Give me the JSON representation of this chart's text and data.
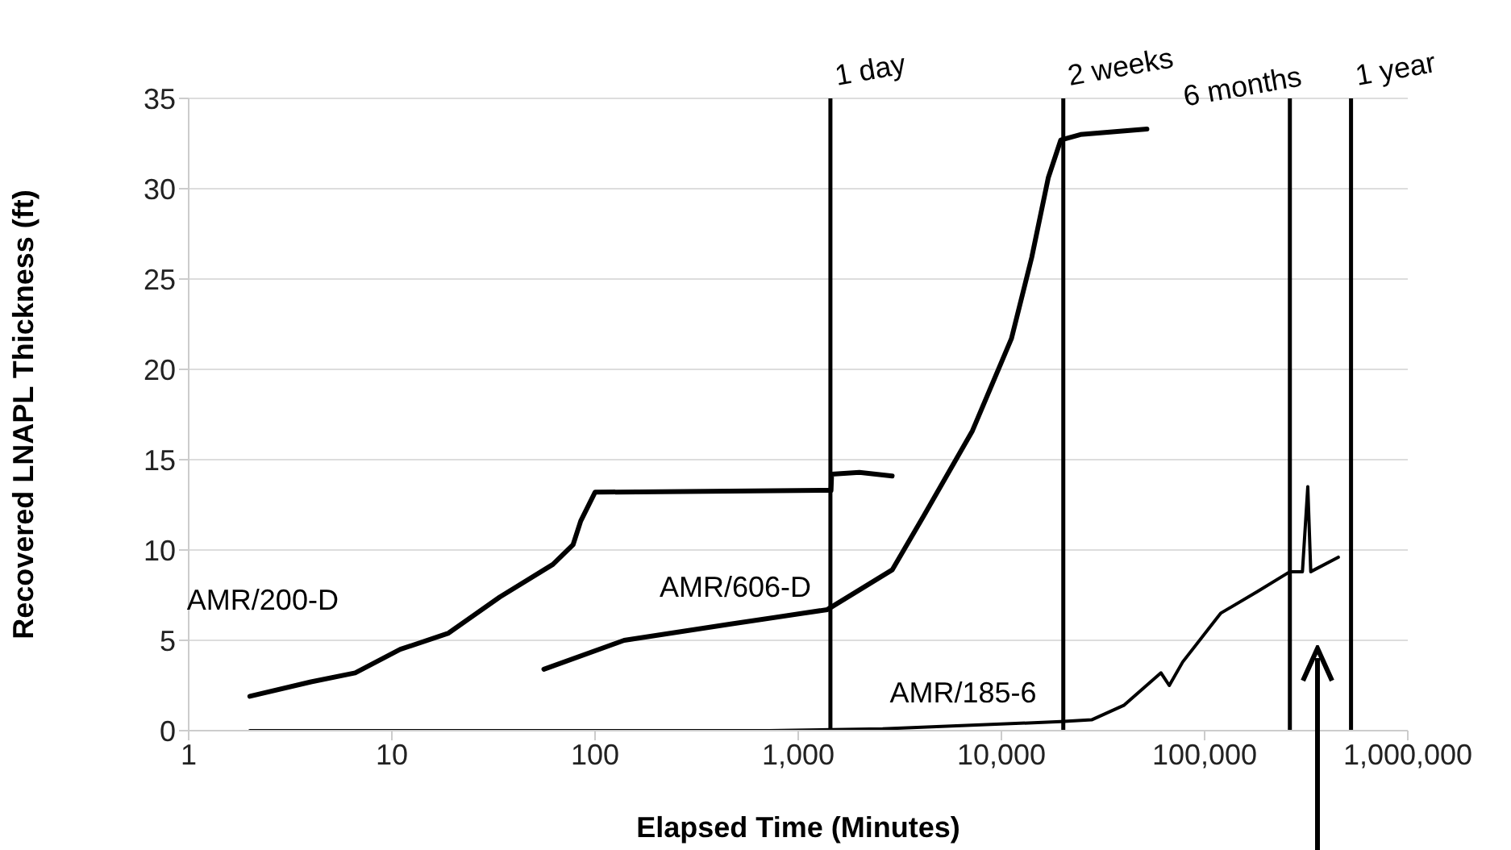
{
  "chart_data": {
    "type": "line",
    "xlabel": "Elapsed Time (Minutes)",
    "ylabel": "Recovered LNAPL Thickness (ft)",
    "log": "x",
    "grid": "y",
    "legend": false,
    "marker": "none",
    "line_style": "solid",
    "xlim": [
      1,
      1000000
    ],
    "xticks": [
      1,
      10,
      100,
      {
        "value": 1000,
        "label": "1,000"
      },
      {
        "value": 10000,
        "label": "10,000"
      },
      {
        "value": 100000,
        "label": "100,000"
      },
      {
        "value": 1000000,
        "label": "1,000,000"
      }
    ],
    "ylim": [
      0,
      35
    ],
    "yticks": [
      0,
      5,
      10,
      15,
      20,
      25,
      30,
      35
    ],
    "series": [
      {
        "name": "AMR/200-D",
        "color": "#000000",
        "x": [
          2,
          4,
          6.6,
          11,
          19,
          34,
          62,
          78,
          85,
          100,
          1300,
          1450,
          1460,
          2000,
          2900
        ],
        "values": [
          1.9,
          2.7,
          3.2,
          4.5,
          5.4,
          7.4,
          9.2,
          10.3,
          11.6,
          13.2,
          13.3,
          13.3,
          14.2,
          14.3,
          14.1
        ]
      },
      {
        "name": "AMR/606-D",
        "color": "#000000",
        "x": [
          56,
          139,
          466,
          1390,
          2900,
          4150,
          7200,
          11200,
          14100,
          17000,
          19600,
          24500,
          52000
        ],
        "values": [
          3.4,
          5.0,
          5.9,
          6.7,
          8.9,
          11.9,
          16.6,
          21.7,
          26.2,
          30.6,
          32.7,
          33.0,
          33.3
        ]
      },
      {
        "name": "AMR/185-6",
        "color": "#000000",
        "x": [
          2,
          720,
          2600,
          19600,
          27800,
          40000,
          61000,
          67000,
          78000,
          120000,
          182000,
          263000,
          303000,
          322000,
          333000,
          455000
        ],
        "values": [
          0,
          0,
          0.1,
          0.5,
          0.6,
          1.4,
          3.2,
          2.5,
          3.8,
          6.5,
          7.7,
          8.8,
          8.8,
          13.5,
          8.8,
          9.6
        ]
      }
    ],
    "ref_lines": [
      {
        "axis": "x",
        "value": 1440,
        "label": "1 day",
        "color": "#000000"
      },
      {
        "axis": "x",
        "value": 20160,
        "label": "2 weeks",
        "color": "#000000"
      },
      {
        "axis": "x",
        "value": 262800,
        "label": "6 months",
        "color": "#000000"
      },
      {
        "axis": "x",
        "value": 525600,
        "label": "1 year",
        "color": "#000000"
      }
    ]
  }
}
